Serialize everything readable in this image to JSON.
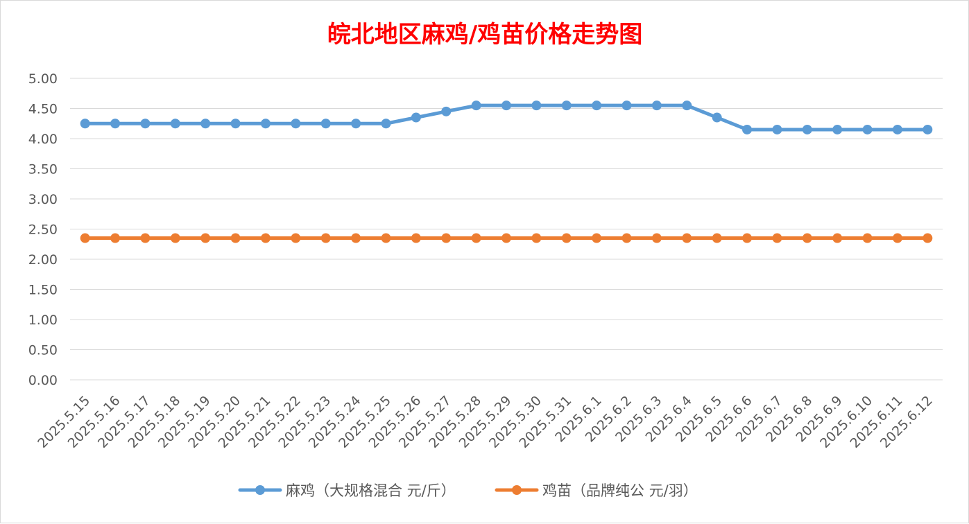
{
  "chart_data": {
    "type": "line",
    "title": "皖北地区麻鸡/鸡苗价格走势图",
    "title_color": "#ff0000",
    "xlabel": "",
    "ylabel": "",
    "ylim": [
      0,
      5
    ],
    "y_ticks": [
      "0.00",
      "0.50",
      "1.00",
      "1.50",
      "2.00",
      "2.50",
      "3.00",
      "3.50",
      "4.00",
      "4.50",
      "5.00"
    ],
    "y_tick_values": [
      0,
      0.5,
      1,
      1.5,
      2,
      2.5,
      3,
      3.5,
      4,
      4.5,
      5
    ],
    "grid": true,
    "legend_position": "bottom",
    "categories": [
      "2025.5.15",
      "2025.5.16",
      "2025.5.17",
      "2025.5.18",
      "2025.5.19",
      "2025.5.20",
      "2025.5.21",
      "2025.5.22",
      "2025.5.23",
      "2025.5.24",
      "2025.5.25",
      "2025.5.26",
      "2025.5.27",
      "2025.5.28",
      "2025.5.29",
      "2025.5.30",
      "2025.5.31",
      "2025.6.1",
      "2025.6.2",
      "2025.6.3",
      "2025.6.4",
      "2025.6.5",
      "2025.6.6",
      "2025.6.7",
      "2025.6.8",
      "2025.6.9",
      "2025.6.10",
      "2025.6.11",
      "2025.6.12"
    ],
    "series": [
      {
        "name": "麻鸡（大规格混合 元/斤）",
        "color": "#5b9bd5",
        "values": [
          4.25,
          4.25,
          4.25,
          4.25,
          4.25,
          4.25,
          4.25,
          4.25,
          4.25,
          4.25,
          4.25,
          4.35,
          4.45,
          4.55,
          4.55,
          4.55,
          4.55,
          4.55,
          4.55,
          4.55,
          4.55,
          4.35,
          4.15,
          4.15,
          4.15,
          4.15,
          4.15,
          4.15,
          4.15
        ]
      },
      {
        "name": "鸡苗（品牌纯公 元/羽）",
        "color": "#ed7d31",
        "values": [
          2.35,
          2.35,
          2.35,
          2.35,
          2.35,
          2.35,
          2.35,
          2.35,
          2.35,
          2.35,
          2.35,
          2.35,
          2.35,
          2.35,
          2.35,
          2.35,
          2.35,
          2.35,
          2.35,
          2.35,
          2.35,
          2.35,
          2.35,
          2.35,
          2.35,
          2.35,
          2.35,
          2.35,
          2.35
        ]
      }
    ]
  }
}
